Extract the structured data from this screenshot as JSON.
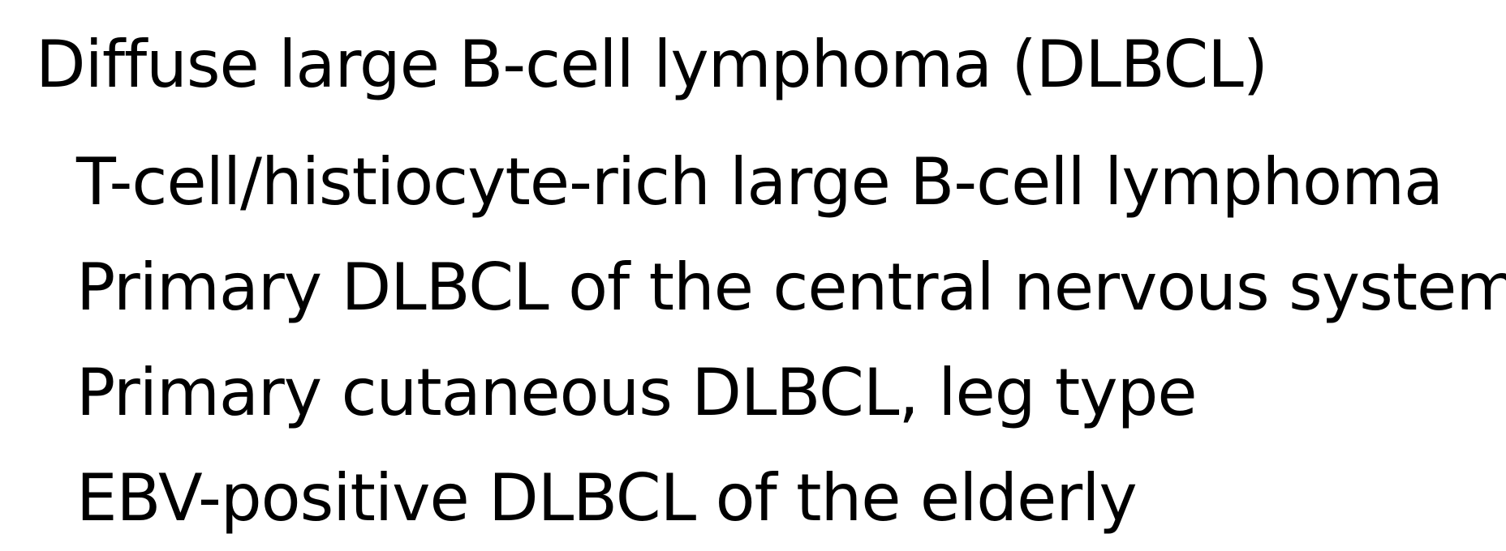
{
  "heading": "Diffuse large B-cell lymphoma (DLBCL)",
  "subtypes": [
    "T-cell/histiocyte-rich large B-cell lymphoma",
    "Primary DLBCL of the central nervous system",
    "Primary cutaneous DLBCL, leg type",
    "EBV-positive DLBCL of the elderly"
  ],
  "colors": {
    "background": "#ffffff",
    "text": "#000000"
  }
}
